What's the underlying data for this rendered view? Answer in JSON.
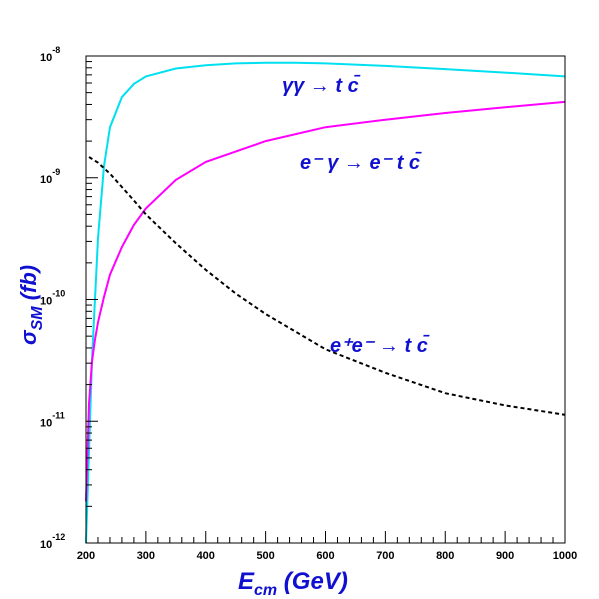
{
  "chart_data": {
    "type": "line",
    "xlabel": "E",
    "xlabel_sub": "cm",
    "xlabel_unit": " (GeV)",
    "ylabel": "σ",
    "ylabel_sub": "SM",
    "ylabel_unit": " (fb)",
    "xlim": [
      200,
      1000
    ],
    "ylim": [
      1e-12,
      1e-08
    ],
    "yscale": "log",
    "grid": false,
    "x_ticks": [
      "200",
      "300",
      "400",
      "500",
      "600",
      "700",
      "800",
      "900",
      "1000"
    ],
    "y_ticks": [
      {
        "base": "10",
        "exp": "-12",
        "value": 1e-12
      },
      {
        "base": "10",
        "exp": "-11",
        "value": 1e-11
      },
      {
        "base": "10",
        "exp": "-10",
        "value": 1e-10
      },
      {
        "base": "10",
        "exp": "-9",
        "value": 1e-09
      },
      {
        "base": "10",
        "exp": "-8",
        "value": 1e-08
      }
    ],
    "series": [
      {
        "color": "#00e0f0",
        "style": "solid",
        "x": [
          200,
          210,
          220,
          230,
          240,
          260,
          280,
          300,
          350,
          400,
          450,
          500,
          550,
          600,
          700,
          800,
          900,
          1000
        ],
        "y": [
          1e-12,
          3.2e-11,
          3.2e-10,
          1.25e-09,
          2.6e-09,
          4.6e-09,
          5.9e-09,
          6.8e-09,
          7.9e-09,
          8.4e-09,
          8.7e-09,
          8.8e-09,
          8.8e-09,
          8.7e-09,
          8.3e-09,
          7.8e-09,
          7.3e-09,
          6.8e-09
        ]
      },
      {
        "color": "#ff00ff",
        "style": "solid",
        "x": [
          200,
          205,
          210,
          215,
          220,
          230,
          240,
          260,
          280,
          300,
          350,
          400,
          500,
          600,
          700,
          800,
          900,
          1000
        ],
        "y": [
          2.2e-12,
          1.4e-11,
          3.1e-11,
          4.7e-11,
          6.5e-11,
          1.05e-10,
          1.6e-10,
          2.7e-10,
          4.1e-10,
          5.6e-10,
          9.6e-10,
          1.35e-09,
          2e-09,
          2.6e-09,
          3e-09,
          3.4e-09,
          3.8e-09,
          4.2e-09
        ]
      },
      {
        "color": "#000000",
        "style": "dashed",
        "x": [
          205,
          220,
          240,
          260,
          280,
          300,
          350,
          400,
          450,
          500,
          600,
          700,
          800,
          900,
          1000
        ],
        "y": [
          1.48e-09,
          1.33e-09,
          1.08e-09,
          8.4e-10,
          6.5e-10,
          5e-10,
          2.9e-10,
          1.75e-10,
          1.12e-10,
          7.6e-11,
          3.9e-11,
          2.5e-11,
          1.7e-11,
          1.35e-11,
          1.13e-11
        ]
      }
    ],
    "annotations": [
      {
        "id": "gg",
        "text": "γγ → t c̄"
      },
      {
        "id": "eg",
        "text": "e⁻ γ → e⁻ t c̄"
      },
      {
        "id": "ee",
        "text": "e⁺e⁻ → t c̄"
      }
    ]
  }
}
